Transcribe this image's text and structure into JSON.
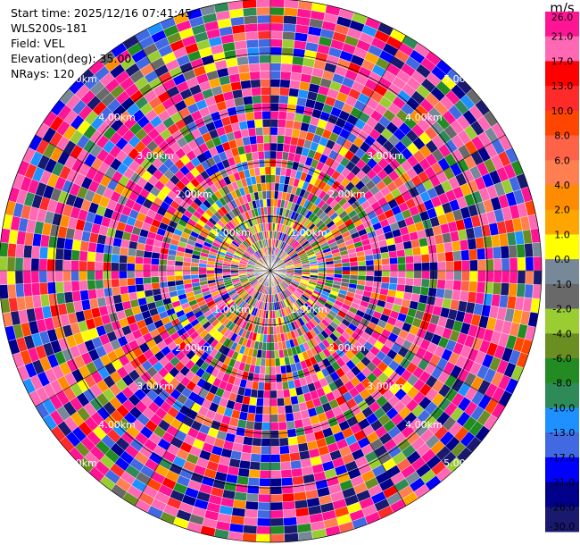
{
  "info": {
    "start_time": "Start time: 2025/12/16 07:41:45",
    "instrument": "WLS200s-181",
    "field": "Field: VEL",
    "elevation": "Elevation(deg): 35.00",
    "nrays": "NRays: 120"
  },
  "chart_data": {
    "type": "heatmap",
    "projection": "polar-ppi",
    "n_rays": 120,
    "n_gates": 34,
    "max_range_km": 5.0,
    "range_rings_km": [
      1,
      2,
      3,
      4,
      5
    ],
    "ring_labels": [
      "1.00km",
      "2.00km",
      "3.00km",
      "4.00km",
      "5.00km"
    ],
    "spokes_deg": [
      0,
      30,
      60,
      90,
      120,
      150,
      180,
      210,
      240,
      270,
      300,
      330
    ],
    "colorbar": {
      "unit": "m/s",
      "ticks": [
        "26.0",
        "21.0",
        "17.0",
        "13.0",
        "10.0",
        "8.0",
        "6.0",
        "4.0",
        "2.0",
        "1.0",
        "0.0",
        "-1.0",
        "-2.0",
        "-4.0",
        "-6.0",
        "-8.0",
        "-10.0",
        "-13.0",
        "-17.0",
        "-21.0",
        "-26.0",
        "-30.0"
      ],
      "colors": [
        "#ff1493",
        "#ff69b4",
        "#ff0000",
        "#ff2a2a",
        "#ff4500",
        "#ff6347",
        "#ff7f50",
        "#ff8c00",
        "#ffa500",
        "#ffff00",
        "#778899",
        "#696969",
        "#9acd32",
        "#6b8e23",
        "#228b22",
        "#2e8b57",
        "#1e90ff",
        "#4169e1",
        "#0000ff",
        "#00008b",
        "#191970"
      ]
    }
  }
}
